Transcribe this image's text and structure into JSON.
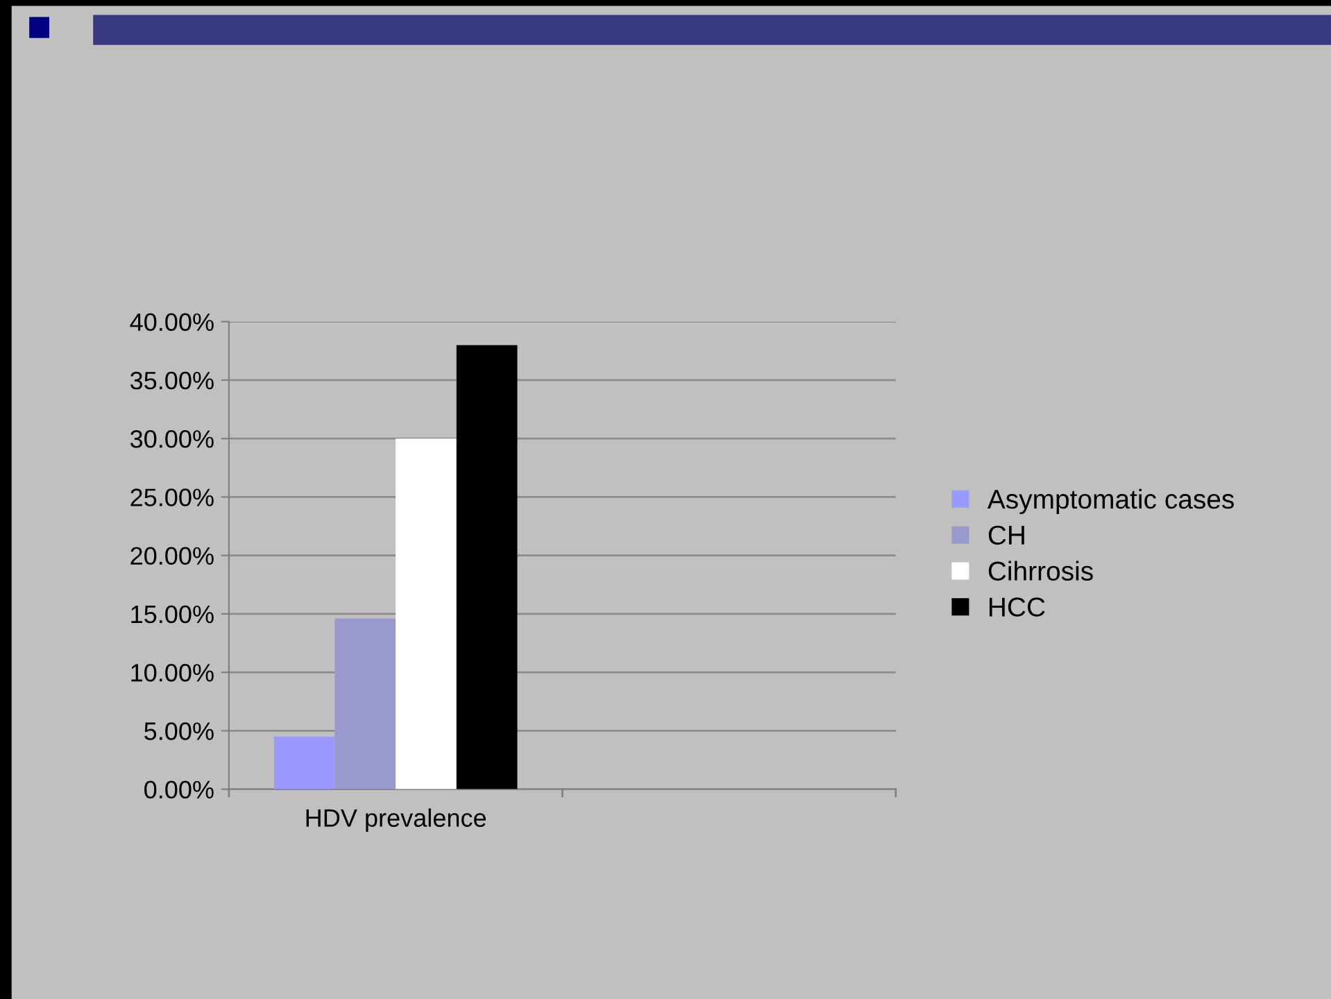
{
  "chart_data": {
    "type": "bar",
    "categories": [
      "HDV prevalence",
      null
    ],
    "series": [
      {
        "name": "Asymptomatic cases",
        "color": "#9999ff",
        "values": [
          4.5,
          null
        ]
      },
      {
        "name": "CH",
        "color": "#9999cc",
        "values": [
          14.6,
          null
        ]
      },
      {
        "name": "Cihrrosis",
        "color": "#ffffff",
        "values": [
          30,
          null
        ]
      },
      {
        "name": "HCC",
        "color": "#000000",
        "values": [
          38,
          null
        ]
      }
    ],
    "ylim": [
      0,
      40
    ],
    "yticks": [
      {
        "value": 0,
        "label": "0.00%"
      },
      {
        "value": 5,
        "label": "5.00%"
      },
      {
        "value": 10,
        "label": "10.00%"
      },
      {
        "value": 15,
        "label": "15.00%"
      },
      {
        "value": 20,
        "label": "20.00%"
      },
      {
        "value": 25,
        "label": "25.00%"
      },
      {
        "value": 30,
        "label": "30.00%"
      },
      {
        "value": 35,
        "label": "35.00%"
      },
      {
        "value": 40,
        "label": "40.00%"
      }
    ],
    "grid": "y",
    "legend": "right"
  }
}
